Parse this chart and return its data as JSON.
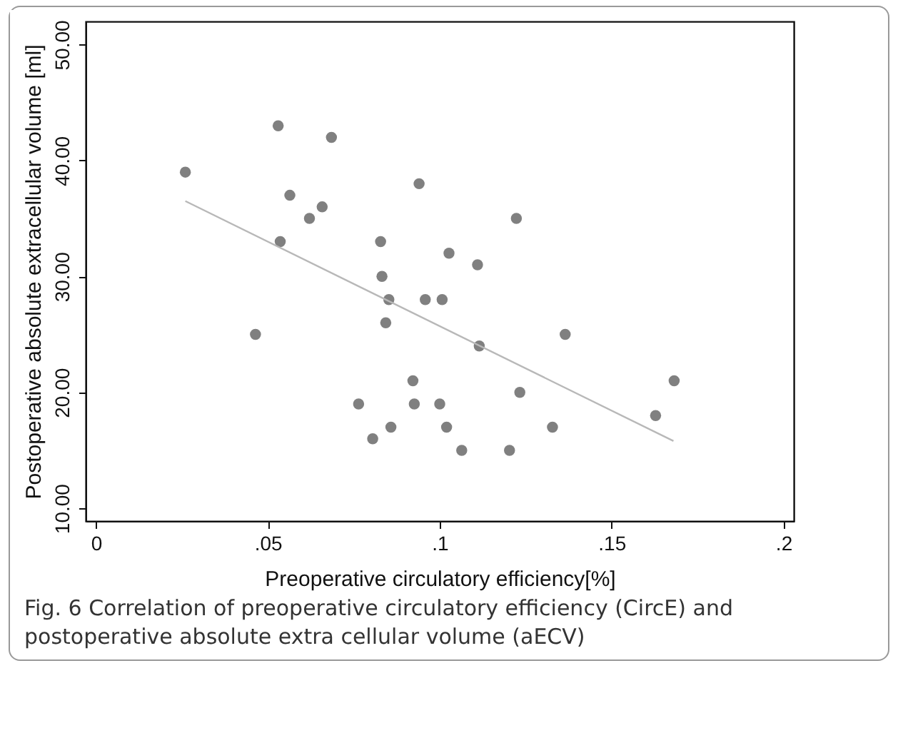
{
  "chart_data": {
    "type": "scatter",
    "xlabel": "Preoperative circulatory efficiency[%]",
    "ylabel": "Postoperative absolute extracellular volume [ml]",
    "annotations": [
      "Fig. 6  Correlation of preoperative circulatory efficiency (CircE) and postoperative absolute extra cellular volume (aECV)"
    ],
    "xlim": [
      -0.003,
      0.203
    ],
    "ylim": [
      8.9,
      52
    ],
    "xticks": [
      {
        "value": 0,
        "label": "0"
      },
      {
        "value": 0.05,
        "label": ".05"
      },
      {
        "value": 0.1,
        "label": ".1"
      },
      {
        "value": 0.15,
        "label": ".15"
      },
      {
        "value": 0.2,
        "label": ".2"
      }
    ],
    "yticks": [
      {
        "value": 10,
        "label": "10.00"
      },
      {
        "value": 20,
        "label": "20.00"
      },
      {
        "value": 30,
        "label": "30.00"
      },
      {
        "value": 40,
        "label": "40.00"
      },
      {
        "value": 50,
        "label": "50.00"
      }
    ],
    "grid": false,
    "series": [
      {
        "marker": "circle",
        "color": "#808080",
        "x": [
          0.026,
          0.053,
          0.0685,
          0.0564,
          0.0658,
          0.0621,
          0.0536,
          0.0464,
          0.094,
          0.0828,
          0.0832,
          0.0852,
          0.0843,
          0.0958,
          0.1007,
          0.1027,
          0.0922,
          0.0764,
          0.0926,
          0.1,
          0.0858,
          0.0805,
          0.102,
          0.1223,
          0.111,
          0.1115,
          0.1365,
          0.1233,
          0.1682,
          0.1628,
          0.1328,
          0.1064,
          0.1203
        ],
        "values": [
          39,
          43,
          42,
          37,
          36,
          35,
          33,
          25,
          38,
          33,
          30,
          28,
          26,
          28,
          28,
          32,
          21,
          19,
          19,
          19,
          17,
          16,
          17,
          35,
          31,
          24,
          25,
          20,
          21,
          18,
          17,
          15,
          15
        ]
      },
      {
        "type": "line",
        "marker": "none",
        "color": "#b8b8b8",
        "x": [
          0.026,
          0.168
        ],
        "values": [
          36.5,
          15.8
        ]
      }
    ]
  }
}
